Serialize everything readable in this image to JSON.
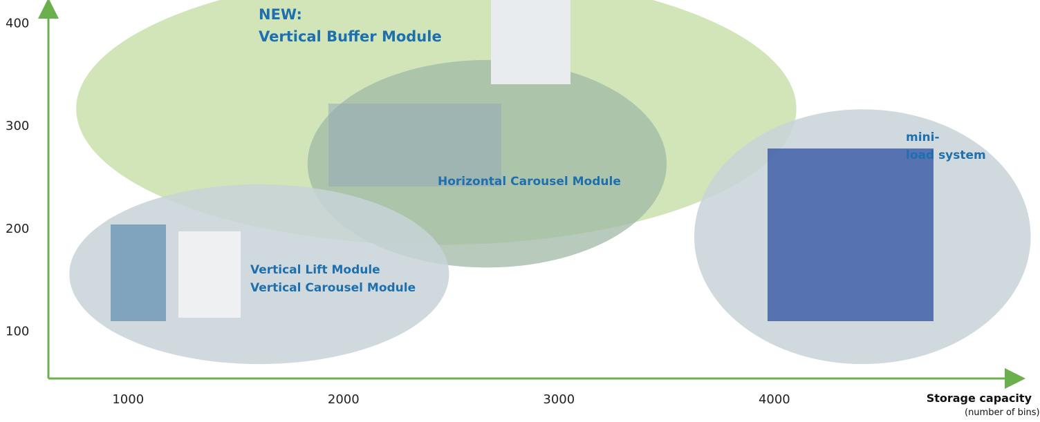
{
  "chart_data": {
    "type": "region",
    "xlabel": "Storage capacity",
    "xlabel_note": "(number of bins)",
    "xlim": [
      630,
      5140
    ],
    "ylim": [
      54,
      417
    ],
    "xticks": [
      1000,
      2000,
      3000,
      4000
    ],
    "yticks": [
      100,
      200,
      300,
      400
    ],
    "regions": [
      {
        "name": [
          "NEW:",
          "Vertical Buffer Module"
        ],
        "color": "#c9e0ad",
        "x": [
          759,
          4102
        ],
        "y": [
          184,
          449
        ]
      },
      {
        "name": [
          "Horizontal Carousel Module"
        ],
        "color": "#9fb8a6",
        "x": [
          1833,
          3500
        ],
        "y": [
          162,
          364
        ]
      },
      {
        "name": [
          "Vertical Lift Module",
          "Vertical Carousel Module"
        ],
        "color": "#c8d3d8",
        "x": [
          727,
          2490
        ],
        "y": [
          68,
          243
        ]
      },
      {
        "name": [
          "mini-",
          "load system"
        ],
        "color": "#c8d3d8",
        "x": [
          3628,
          5190
        ],
        "y": [
          68,
          316
        ]
      }
    ]
  }
}
